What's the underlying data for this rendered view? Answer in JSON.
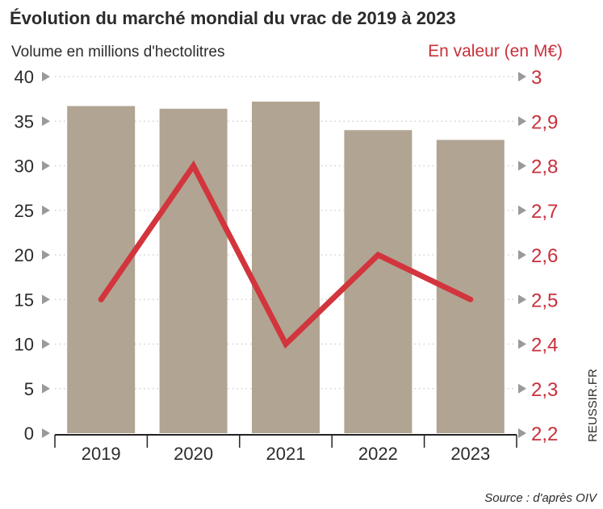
{
  "chart_data": {
    "type": "bar",
    "title": "Évolution du marché mondial du vrac de 2019 à 2023",
    "ylabel": "Volume en millions d'hectolitres",
    "y2label": "En valeur (en M€)",
    "categories": [
      "2019",
      "2020",
      "2021",
      "2022",
      "2023"
    ],
    "series": [
      {
        "name": "Volume en millions d'hectolitres",
        "type": "bar",
        "axis": "left",
        "values": [
          36.7,
          36.4,
          37.2,
          34.0,
          32.9
        ]
      },
      {
        "name": "En valeur (en M€)",
        "type": "line",
        "axis": "right",
        "values": [
          2.5,
          2.8,
          2.4,
          2.6,
          2.5
        ]
      }
    ],
    "ylim": [
      0,
      40
    ],
    "yticks": [
      "0",
      "5",
      "10",
      "15",
      "20",
      "25",
      "30",
      "35",
      "40"
    ],
    "y2lim": [
      2.2,
      3.0
    ],
    "y2ticks": [
      "2,2",
      "2,3",
      "2,4",
      "2,5",
      "2,6",
      "2,7",
      "2,8",
      "2,9",
      "3"
    ],
    "grid": true,
    "source": "Source : d'après OIV",
    "credit": "REUSSIR.FR"
  },
  "colors": {
    "bar": "#b1a492",
    "line": "#d2353d",
    "right_axis": "#c8303a",
    "text": "#2b2b2b",
    "grid": "#c9c9c9",
    "tick_marker": "#9a9a9a"
  }
}
